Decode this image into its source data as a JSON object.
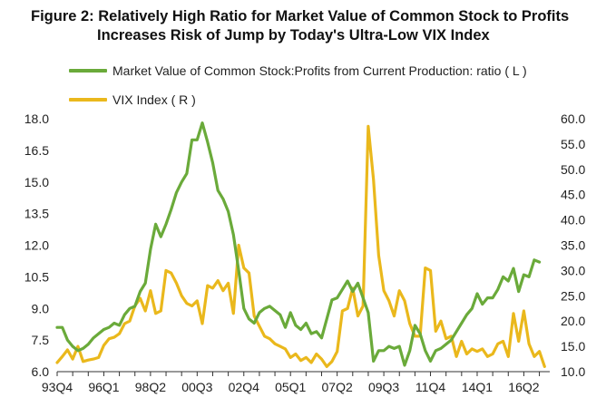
{
  "header": {
    "title_line1": "Figure 2: Relatively High Ratio for Market Value of Common Stock to Profits",
    "title_line2": "Increases Risk of Jump by Today's Ultra-Low VIX Index"
  },
  "chart_data": {
    "type": "line",
    "title": "Figure 2: Relatively High Ratio for Market Value of Common Stock to Profits Increases Risk of Jump by Today's Ultra-Low VIX Index",
    "x_tick_labels": [
      "93Q4",
      "96Q1",
      "98Q2",
      "00Q3",
      "02Q4",
      "05Q1",
      "07Q2",
      "09Q3",
      "11Q4",
      "14Q1",
      "16Q2"
    ],
    "x_range": [
      1993.75,
      2017.5
    ],
    "left_axis": {
      "ylim": [
        6.0,
        18.0
      ],
      "ticks": [
        "6.0",
        "7.5",
        "9.0",
        "10.5",
        "12.0",
        "13.5",
        "15.0",
        "16.5",
        "18.0"
      ]
    },
    "right_axis": {
      "ylim": [
        10.0,
        60.0
      ],
      "ticks": [
        "10.0",
        "15.0",
        "20.0",
        "25.0",
        "30.0",
        "35.0",
        "40.0",
        "45.0",
        "50.0",
        "55.0",
        "60.0"
      ]
    },
    "grid": false,
    "legend_position": "top-left",
    "series": [
      {
        "name": "Market Value of Common Stock:Profits from Current Production: ratio ( L )",
        "axis": "left",
        "color": "#6aaa3a",
        "points": [
          [
            1993.75,
            8.1
          ],
          [
            1994.0,
            8.1
          ],
          [
            1994.25,
            7.5
          ],
          [
            1994.5,
            7.2
          ],
          [
            1994.75,
            7.0
          ],
          [
            1995.0,
            7.1
          ],
          [
            1995.25,
            7.3
          ],
          [
            1995.5,
            7.6
          ],
          [
            1995.75,
            7.8
          ],
          [
            1996.0,
            8.0
          ],
          [
            1996.25,
            8.1
          ],
          [
            1996.5,
            8.3
          ],
          [
            1996.75,
            8.2
          ],
          [
            1997.0,
            8.7
          ],
          [
            1997.25,
            9.0
          ],
          [
            1997.5,
            9.1
          ],
          [
            1997.75,
            9.8
          ],
          [
            1998.0,
            10.2
          ],
          [
            1998.25,
            11.8
          ],
          [
            1998.5,
            13.0
          ],
          [
            1998.75,
            12.4
          ],
          [
            1999.0,
            13.0
          ],
          [
            1999.25,
            13.7
          ],
          [
            1999.5,
            14.5
          ],
          [
            1999.75,
            15.0
          ],
          [
            2000.0,
            15.4
          ],
          [
            2000.25,
            17.0
          ],
          [
            2000.5,
            17.0
          ],
          [
            2000.75,
            17.8
          ],
          [
            2001.0,
            16.9
          ],
          [
            2001.25,
            15.9
          ],
          [
            2001.5,
            14.6
          ],
          [
            2001.75,
            14.2
          ],
          [
            2002.0,
            13.6
          ],
          [
            2002.25,
            12.5
          ],
          [
            2002.5,
            10.8
          ],
          [
            2002.75,
            9.0
          ],
          [
            2003.0,
            8.5
          ],
          [
            2003.25,
            8.3
          ],
          [
            2003.5,
            8.8
          ],
          [
            2003.75,
            9.0
          ],
          [
            2004.0,
            9.1
          ],
          [
            2004.25,
            8.9
          ],
          [
            2004.5,
            8.7
          ],
          [
            2004.75,
            8.1
          ],
          [
            2005.0,
            8.8
          ],
          [
            2005.25,
            8.2
          ],
          [
            2005.5,
            8.0
          ],
          [
            2005.75,
            8.3
          ],
          [
            2006.0,
            7.8
          ],
          [
            2006.25,
            7.9
          ],
          [
            2006.5,
            7.6
          ],
          [
            2006.75,
            8.5
          ],
          [
            2007.0,
            9.4
          ],
          [
            2007.25,
            9.5
          ],
          [
            2007.5,
            9.9
          ],
          [
            2007.75,
            10.3
          ],
          [
            2008.0,
            9.8
          ],
          [
            2008.25,
            10.2
          ],
          [
            2008.5,
            9.5
          ],
          [
            2008.75,
            8.8
          ],
          [
            2009.0,
            6.5
          ],
          [
            2009.25,
            7.0
          ],
          [
            2009.5,
            7.0
          ],
          [
            2009.75,
            7.2
          ],
          [
            2010.0,
            7.1
          ],
          [
            2010.25,
            7.2
          ],
          [
            2010.5,
            6.3
          ],
          [
            2010.75,
            7.0
          ],
          [
            2011.0,
            8.2
          ],
          [
            2011.25,
            7.8
          ],
          [
            2011.5,
            7.0
          ],
          [
            2011.75,
            6.5
          ],
          [
            2012.0,
            7.0
          ],
          [
            2012.25,
            7.1
          ],
          [
            2012.5,
            7.3
          ],
          [
            2012.75,
            7.5
          ],
          [
            2013.0,
            7.9
          ],
          [
            2013.25,
            8.3
          ],
          [
            2013.5,
            8.7
          ],
          [
            2013.75,
            9.0
          ],
          [
            2014.0,
            9.7
          ],
          [
            2014.25,
            9.2
          ],
          [
            2014.5,
            9.5
          ],
          [
            2014.75,
            9.5
          ],
          [
            2015.0,
            9.9
          ],
          [
            2015.25,
            10.5
          ],
          [
            2015.5,
            10.3
          ],
          [
            2015.75,
            10.9
          ],
          [
            2016.0,
            9.8
          ],
          [
            2016.25,
            10.6
          ],
          [
            2016.5,
            10.5
          ],
          [
            2016.75,
            11.3
          ],
          [
            2017.0,
            11.2
          ]
        ]
      },
      {
        "name": "VIX Index ( R )",
        "axis": "right",
        "color": "#eab81c",
        "points": [
          [
            1993.75,
            11.8
          ],
          [
            1994.0,
            13.0
          ],
          [
            1994.25,
            14.3
          ],
          [
            1994.5,
            12.5
          ],
          [
            1994.75,
            15.0
          ],
          [
            1995.0,
            12.0
          ],
          [
            1995.25,
            12.3
          ],
          [
            1995.5,
            12.5
          ],
          [
            1995.75,
            12.8
          ],
          [
            1996.0,
            15.2
          ],
          [
            1996.25,
            16.5
          ],
          [
            1996.5,
            16.8
          ],
          [
            1996.75,
            17.5
          ],
          [
            1997.0,
            19.5
          ],
          [
            1997.25,
            20.0
          ],
          [
            1997.5,
            23.0
          ],
          [
            1997.75,
            24.5
          ],
          [
            1998.0,
            22.0
          ],
          [
            1998.25,
            26.0
          ],
          [
            1998.5,
            21.5
          ],
          [
            1998.75,
            22.0
          ],
          [
            1999.0,
            30.0
          ],
          [
            1999.25,
            29.5
          ],
          [
            1999.5,
            27.5
          ],
          [
            1999.75,
            25.0
          ],
          [
            2000.0,
            23.5
          ],
          [
            2000.25,
            23.0
          ],
          [
            2000.5,
            24.0
          ],
          [
            2000.75,
            19.5
          ],
          [
            2001.0,
            27.0
          ],
          [
            2001.25,
            26.5
          ],
          [
            2001.5,
            28.0
          ],
          [
            2001.75,
            26.0
          ],
          [
            2002.0,
            27.5
          ],
          [
            2002.25,
            21.5
          ],
          [
            2002.5,
            35.0
          ],
          [
            2002.75,
            30.5
          ],
          [
            2003.0,
            29.5
          ],
          [
            2003.25,
            21.0
          ],
          [
            2003.5,
            19.0
          ],
          [
            2003.75,
            17.0
          ],
          [
            2004.0,
            16.5
          ],
          [
            2004.25,
            15.5
          ],
          [
            2004.5,
            15.0
          ],
          [
            2004.75,
            14.5
          ],
          [
            2005.0,
            12.8
          ],
          [
            2005.25,
            13.5
          ],
          [
            2005.5,
            12.2
          ],
          [
            2005.75,
            12.8
          ],
          [
            2006.0,
            11.8
          ],
          [
            2006.25,
            13.5
          ],
          [
            2006.5,
            12.5
          ],
          [
            2006.75,
            11.0
          ],
          [
            2007.0,
            12.0
          ],
          [
            2007.25,
            14.0
          ],
          [
            2007.5,
            22.0
          ],
          [
            2007.75,
            22.5
          ],
          [
            2008.0,
            26.5
          ],
          [
            2008.25,
            21.0
          ],
          [
            2008.5,
            23.0
          ],
          [
            2008.75,
            58.5
          ],
          [
            2009.0,
            48.0
          ],
          [
            2009.25,
            33.0
          ],
          [
            2009.5,
            26.0
          ],
          [
            2009.75,
            24.0
          ],
          [
            2010.0,
            21.0
          ],
          [
            2010.25,
            26.0
          ],
          [
            2010.5,
            24.0
          ],
          [
            2010.75,
            19.5
          ],
          [
            2011.0,
            17.0
          ],
          [
            2011.25,
            17.0
          ],
          [
            2011.5,
            30.5
          ],
          [
            2011.75,
            30.0
          ],
          [
            2012.0,
            18.0
          ],
          [
            2012.25,
            20.0
          ],
          [
            2012.5,
            16.5
          ],
          [
            2012.75,
            17.0
          ],
          [
            2013.0,
            13.0
          ],
          [
            2013.25,
            16.0
          ],
          [
            2013.5,
            13.5
          ],
          [
            2013.75,
            14.5
          ],
          [
            2014.0,
            14.0
          ],
          [
            2014.25,
            14.5
          ],
          [
            2014.5,
            13.0
          ],
          [
            2014.75,
            13.5
          ],
          [
            2015.0,
            15.5
          ],
          [
            2015.25,
            16.0
          ],
          [
            2015.5,
            13.0
          ],
          [
            2015.75,
            21.5
          ],
          [
            2016.0,
            16.0
          ],
          [
            2016.25,
            22.0
          ],
          [
            2016.5,
            15.5
          ],
          [
            2016.75,
            13.0
          ],
          [
            2017.0,
            14.0
          ],
          [
            2017.25,
            11.0
          ]
        ]
      }
    ]
  }
}
